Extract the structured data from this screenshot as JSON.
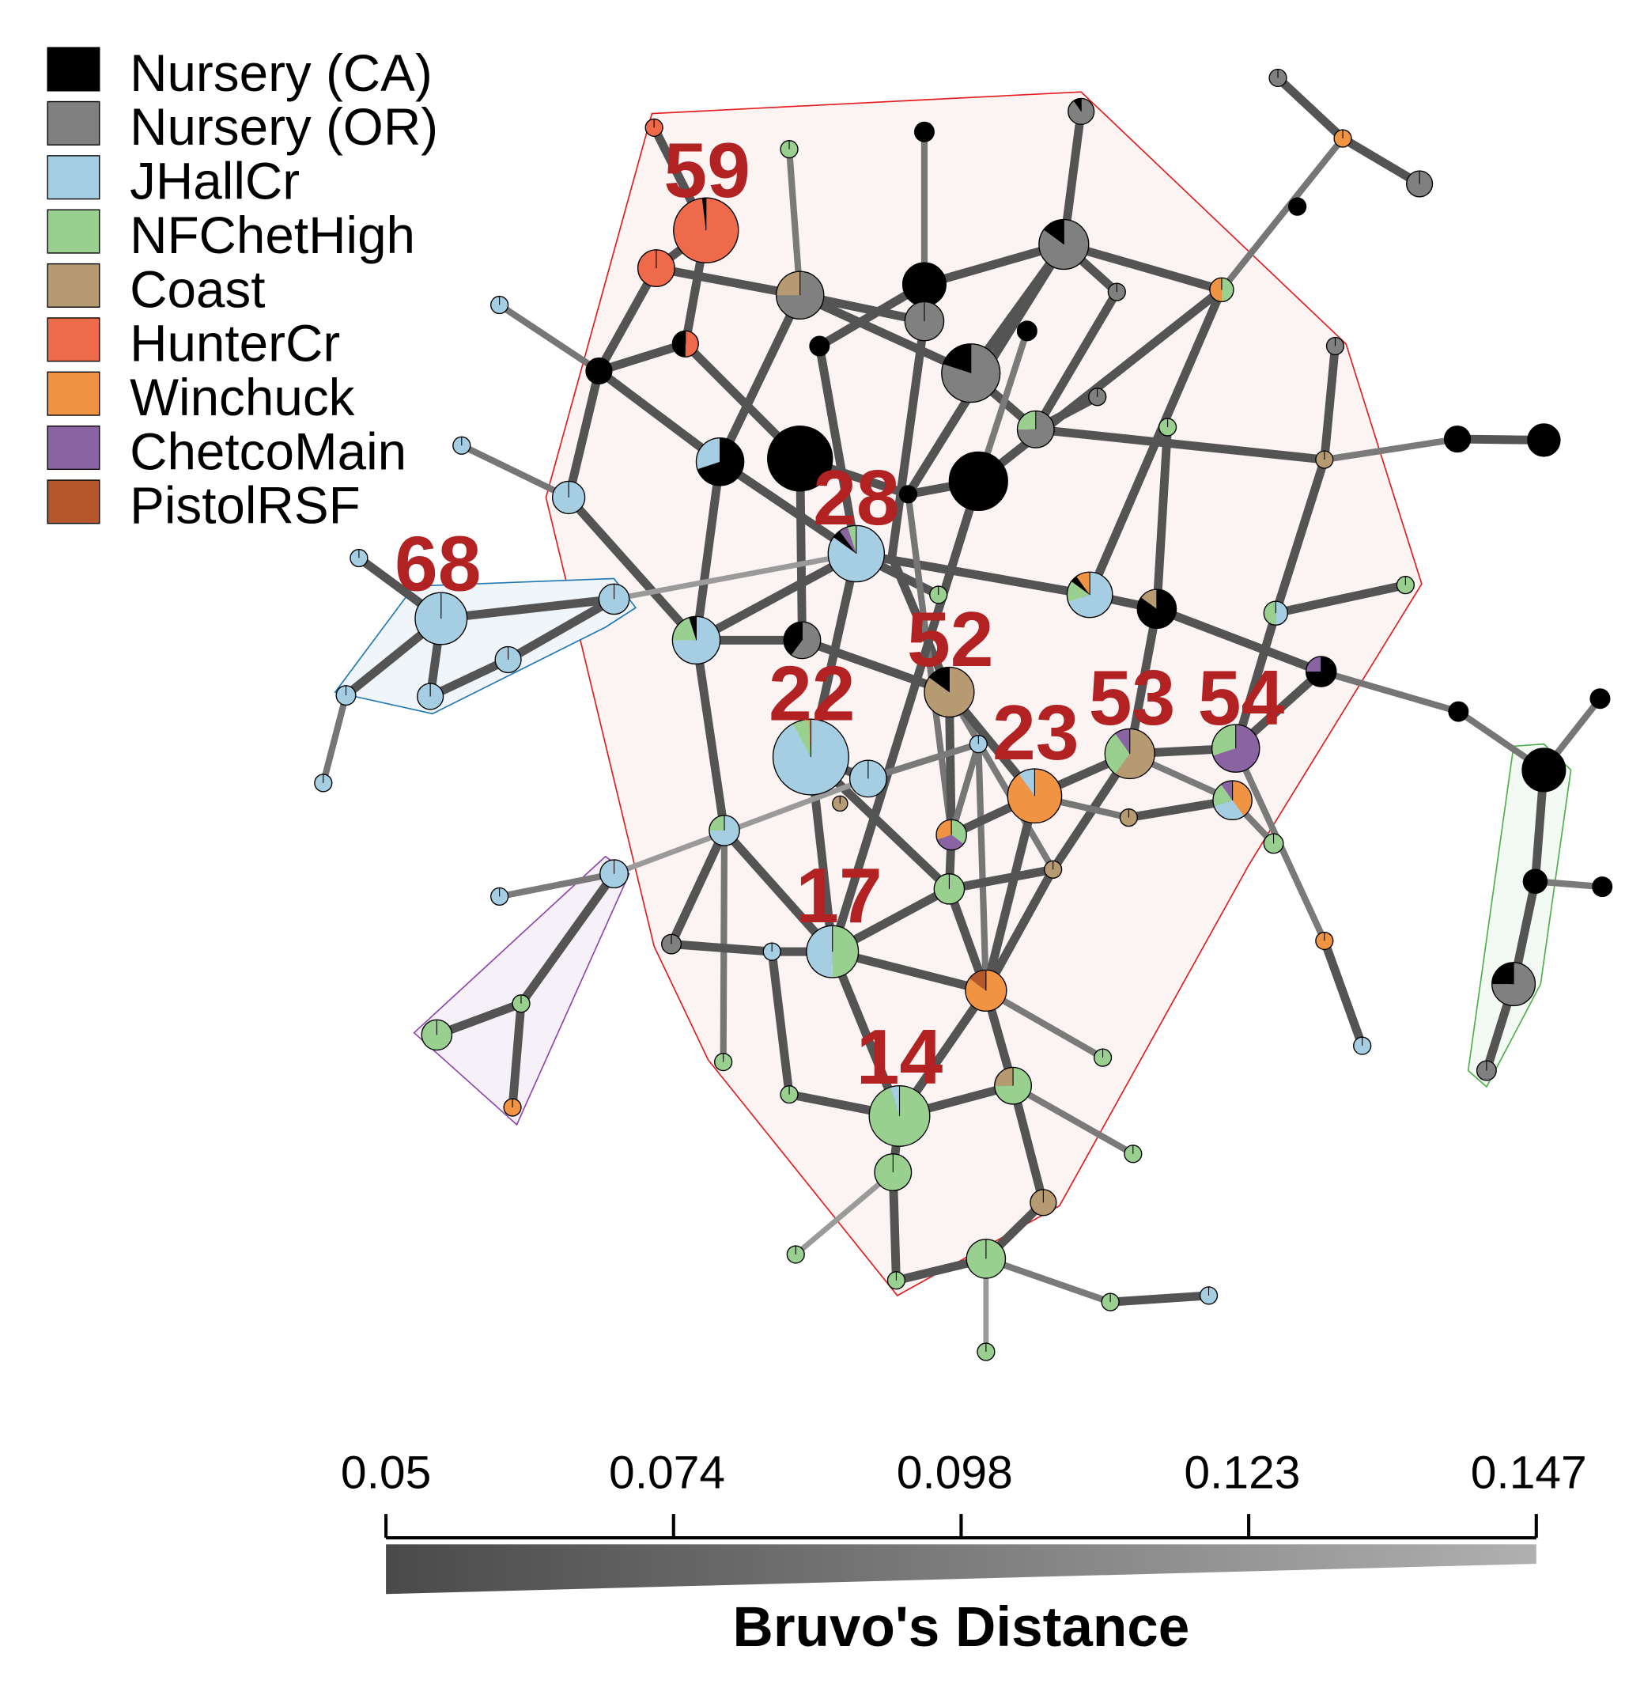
{
  "legend": {
    "populations": [
      {
        "name": "Nursery (CA)",
        "color": "#000000"
      },
      {
        "name": "Nursery (OR)",
        "color": "#808080"
      },
      {
        "name": "JHallCr",
        "color": "#a6cee3"
      },
      {
        "name": "NFChetHigh",
        "color": "#99d08f"
      },
      {
        "name": "Coast",
        "color": "#b59a72"
      },
      {
        "name": "HunterCr",
        "color": "#ee6a4a"
      },
      {
        "name": "Winchuck",
        "color": "#f09342"
      },
      {
        "name": "ChetcoMain",
        "color": "#8a63a3"
      },
      {
        "name": "PistolRSF",
        "color": "#b4572b"
      }
    ]
  },
  "cluster_labels": [
    "59",
    "28",
    "68",
    "52",
    "22",
    "23",
    "53",
    "54",
    "17",
    "14"
  ],
  "distance_scale": {
    "title": "Bruvo's Distance",
    "ticks": [
      "0.05",
      "0.074",
      "0.098",
      "0.123",
      "0.147"
    ],
    "min": 0.05,
    "max": 0.147
  }
}
